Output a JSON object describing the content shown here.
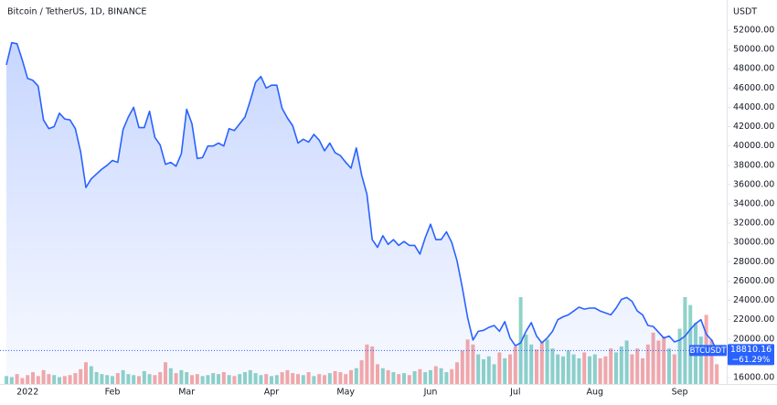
{
  "chart_data": {
    "type": "area",
    "title": "Bitcoin / TetherUS, 1D, BINANCE",
    "currency": "USDT",
    "symbol": "BTCUSDT",
    "last_change": {
      "value": -61.29,
      "label": "−61.29%"
    },
    "color": "#2962ff",
    "up_color": "#8fd3c8",
    "down_color": "#f7a9a7",
    "categories": [
      null,
      null,
      null,
      null,
      "2022",
      null,
      null,
      null,
      null,
      null,
      null,
      null,
      null,
      null,
      null,
      null,
      null,
      null,
      null,
      null,
      "Feb",
      null,
      null,
      null,
      null,
      null,
      null,
      null,
      null,
      null,
      null,
      null,
      null,
      null,
      "Mar",
      null,
      null,
      null,
      null,
      null,
      null,
      null,
      null,
      null,
      null,
      null,
      null,
      null,
      null,
      null,
      "Apr",
      null,
      null,
      null,
      null,
      null,
      null,
      null,
      null,
      null,
      null,
      null,
      null,
      null,
      "May",
      null,
      null,
      null,
      null,
      null,
      null,
      null,
      null,
      null,
      null,
      null,
      null,
      null,
      null,
      null,
      "Jun",
      null,
      null,
      null,
      null,
      null,
      null,
      null,
      null,
      null,
      null,
      null,
      null,
      null,
      null,
      null,
      "Jul",
      null,
      null,
      null,
      null,
      null,
      null,
      null,
      null,
      null,
      null,
      null,
      null,
      null,
      null,
      "Aug",
      null,
      null,
      null,
      null,
      null,
      null,
      null,
      null,
      null,
      null,
      null,
      null,
      null,
      null,
      null,
      "Sep",
      null,
      null,
      null,
      null,
      null,
      null,
      null
    ],
    "values": [
      48400,
      50700,
      50600,
      48900,
      47000,
      46800,
      46200,
      42700,
      41800,
      42000,
      43400,
      42800,
      42700,
      41800,
      39400,
      35700,
      36600,
      37100,
      37600,
      38000,
      38500,
      38300,
      41700,
      43000,
      44000,
      41900,
      41900,
      43600,
      40900,
      40100,
      38100,
      38300,
      37900,
      39200,
      43800,
      42300,
      38700,
      38800,
      40000,
      40000,
      40300,
      40000,
      41800,
      41600,
      42300,
      43000,
      44700,
      46600,
      47200,
      46000,
      46300,
      46300,
      43900,
      42900,
      42100,
      40300,
      40700,
      40400,
      41200,
      40600,
      39500,
      40300,
      39300,
      39000,
      38300,
      37700,
      39800,
      37000,
      35000,
      30300,
      29500,
      30700,
      29800,
      30300,
      29700,
      30100,
      29700,
      29700,
      28800,
      30500,
      31900,
      30300,
      30300,
      31100,
      30000,
      28100,
      25300,
      22200,
      19900,
      20800,
      20900,
      21200,
      21400,
      20800,
      21800,
      20100,
      19300,
      19600,
      20800,
      21700,
      20300,
      19600,
      20100,
      20800,
      22000,
      22300,
      22500,
      22900,
      23300,
      23100,
      23200,
      23200,
      22900,
      22700,
      22500,
      23200,
      24100,
      24300,
      23900,
      22900,
      22500,
      21400,
      21300,
      20700,
      20100,
      20300,
      19700,
      19900,
      20300,
      21000,
      21600,
      22000,
      20500,
      19900,
      18810.16
    ],
    "volume": [
      8,
      7,
      10,
      6,
      9,
      12,
      8,
      14,
      10,
      9,
      7,
      8,
      9,
      11,
      15,
      22,
      18,
      12,
      10,
      9,
      8,
      11,
      14,
      10,
      9,
      8,
      13,
      10,
      9,
      12,
      22,
      16,
      11,
      14,
      12,
      9,
      10,
      8,
      9,
      11,
      10,
      12,
      9,
      8,
      10,
      12,
      14,
      11,
      9,
      10,
      8,
      9,
      12,
      14,
      11,
      10,
      9,
      12,
      8,
      10,
      9,
      11,
      13,
      12,
      10,
      14,
      16,
      24,
      40,
      38,
      20,
      16,
      14,
      12,
      10,
      11,
      9,
      13,
      15,
      12,
      14,
      18,
      16,
      12,
      15,
      22,
      34,
      45,
      40,
      30,
      25,
      28,
      20,
      32,
      26,
      30,
      38,
      88,
      50,
      40,
      35,
      42,
      45,
      36,
      30,
      28,
      34,
      30,
      26,
      32,
      28,
      30,
      26,
      28,
      36,
      32,
      38,
      44,
      30,
      36,
      26,
      40,
      52,
      44,
      48,
      36,
      30,
      56,
      88,
      80,
      62,
      48,
      70,
      45,
      20
    ],
    "ylim": [
      15340,
      54650
    ],
    "yticks": [
      {
        "value": 16000,
        "label": "16000.00"
      },
      {
        "value": 18000,
        "label": "18000.00"
      },
      {
        "value": 20000,
        "label": "20000.00"
      },
      {
        "value": 22000,
        "label": "22000.00"
      },
      {
        "value": 24000,
        "label": "24000.00"
      },
      {
        "value": 26000,
        "label": "26000.00"
      },
      {
        "value": 28000,
        "label": "28000.00"
      },
      {
        "value": 30000,
        "label": "30000.00"
      },
      {
        "value": 32000,
        "label": "32000.00"
      },
      {
        "value": 34000,
        "label": "34000.00"
      },
      {
        "value": 36000,
        "label": "36000.00"
      },
      {
        "value": 38000,
        "label": "38000.00"
      },
      {
        "value": 40000,
        "label": "40000.00"
      },
      {
        "value": 42000,
        "label": "42000.00"
      },
      {
        "value": 44000,
        "label": "44000.00"
      },
      {
        "value": 46000,
        "label": "46000.00"
      },
      {
        "value": 48000,
        "label": "48000.00"
      },
      {
        "value": 50000,
        "label": "50000.00"
      },
      {
        "value": 52000,
        "label": "52000.00"
      }
    ]
  }
}
